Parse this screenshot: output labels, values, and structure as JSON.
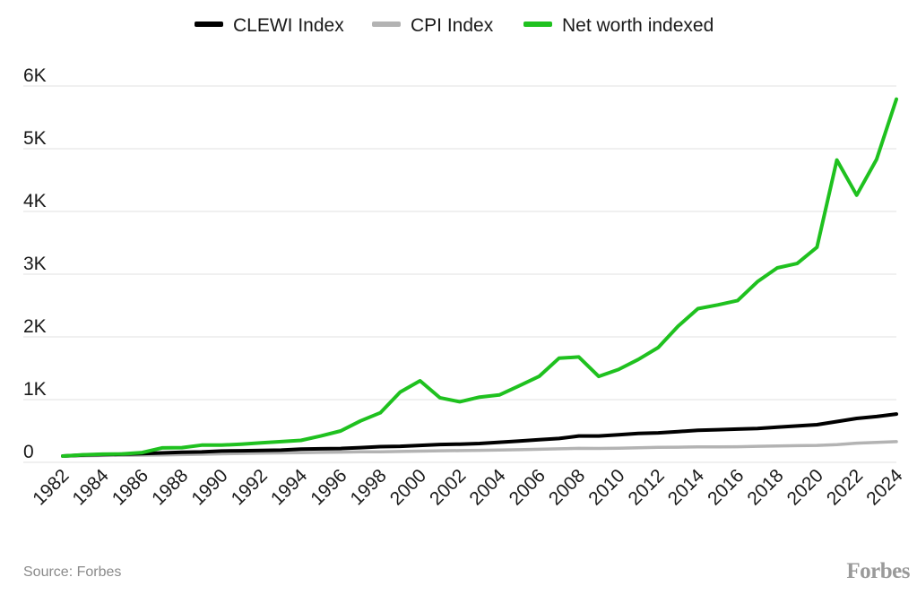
{
  "source": "Source: Forbes",
  "logo": "Forbes",
  "chart_data": {
    "type": "line",
    "title": "",
    "xlabel": "",
    "ylabel": "",
    "legend_position": "top-center",
    "grid": "horizontal",
    "ylim": [
      0,
      6000
    ],
    "yticks": [
      0,
      1000,
      2000,
      3000,
      4000,
      5000,
      6000
    ],
    "ytick_labels": [
      "0",
      "1K",
      "2K",
      "3K",
      "4K",
      "5K",
      "6K"
    ],
    "xtick_labels": [
      "1982",
      "1984",
      "1986",
      "1988",
      "1990",
      "1992",
      "1994",
      "1996",
      "1998",
      "2000",
      "2002",
      "2004",
      "2006",
      "2008",
      "2010",
      "2012",
      "2014",
      "2016",
      "2018",
      "2020",
      "2022",
      "2024"
    ],
    "x": [
      1982,
      1983,
      1984,
      1985,
      1986,
      1987,
      1988,
      1989,
      1990,
      1991,
      1992,
      1993,
      1994,
      1995,
      1996,
      1997,
      1998,
      1999,
      2000,
      2001,
      2002,
      2003,
      2004,
      2005,
      2006,
      2007,
      2008,
      2009,
      2010,
      2011,
      2012,
      2013,
      2014,
      2015,
      2016,
      2017,
      2018,
      2019,
      2020,
      2021,
      2022,
      2023,
      2024
    ],
    "series": [
      {
        "name": "CLEWI Index",
        "color": "#000000",
        "values": [
          100,
          115,
          125,
          130,
          140,
          150,
          160,
          165,
          180,
          185,
          190,
          195,
          210,
          215,
          220,
          235,
          250,
          255,
          270,
          285,
          290,
          300,
          320,
          340,
          360,
          380,
          420,
          420,
          440,
          460,
          470,
          490,
          510,
          520,
          530,
          540,
          560,
          580,
          600,
          650,
          700,
          730,
          770
        ]
      },
      {
        "name": "CPI Index",
        "color": "#b3b3b3",
        "values": [
          100,
          104,
          108,
          112,
          114,
          118,
          123,
          129,
          136,
          141,
          146,
          150,
          154,
          158,
          163,
          167,
          169,
          173,
          179,
          184,
          187,
          191,
          196,
          202,
          209,
          215,
          223,
          222,
          226,
          233,
          238,
          242,
          246,
          246,
          249,
          255,
          261,
          266,
          270,
          283,
          305,
          318,
          330
        ]
      },
      {
        "name": "Net worth indexed",
        "color": "#1fc11f",
        "values": [
          100,
          120,
          130,
          135,
          155,
          230,
          235,
          275,
          275,
          290,
          310,
          330,
          350,
          420,
          500,
          660,
          790,
          1120,
          1300,
          1030,
          965,
          1040,
          1075,
          1220,
          1370,
          1660,
          1680,
          1370,
          1480,
          1640,
          1830,
          2170,
          2450,
          2510,
          2580,
          2880,
          3100,
          3170,
          3430,
          4820,
          4260,
          4830,
          5790
        ]
      }
    ]
  }
}
